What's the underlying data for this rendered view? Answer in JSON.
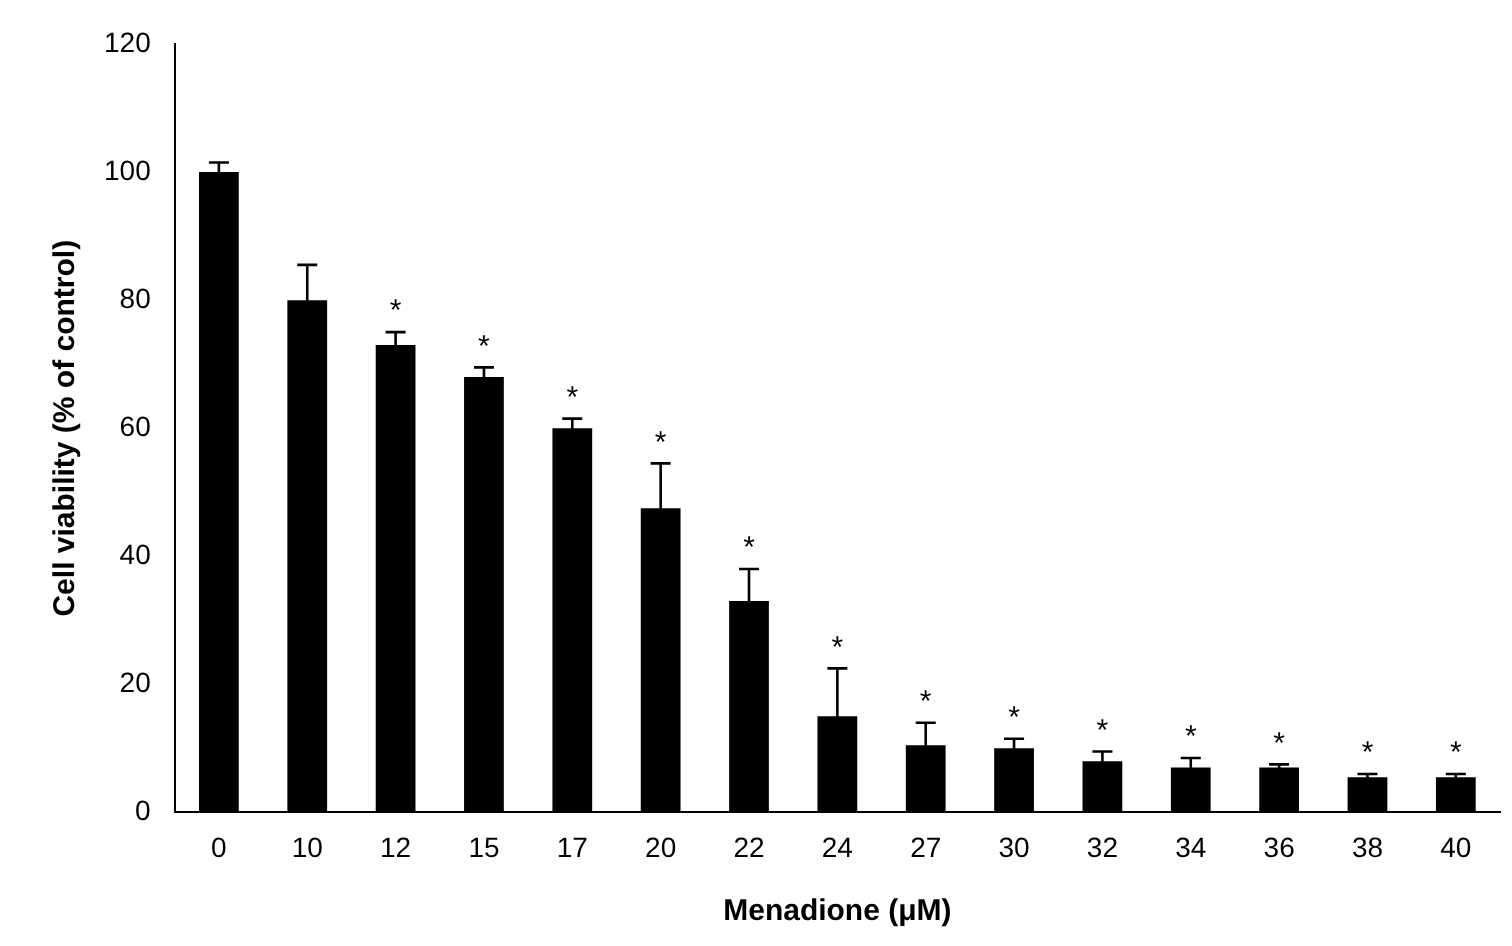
{
  "chart_data": {
    "type": "bar",
    "xlabel": "Menadione (μM)",
    "ylabel": "Cell viability (% of control)",
    "categories": [
      "0",
      "10",
      "12",
      "15",
      "17",
      "20",
      "22",
      "24",
      "27",
      "30",
      "32",
      "34",
      "36",
      "38",
      "40"
    ],
    "values": [
      100,
      80,
      73,
      68,
      60,
      47.5,
      33,
      15,
      10.5,
      10,
      8,
      7,
      7,
      5.5,
      5.5
    ],
    "errors": [
      1.5,
      5.5,
      2,
      1.5,
      1.5,
      7,
      5,
      7.5,
      3.5,
      1.5,
      1.5,
      1.5,
      0.5,
      0.5,
      0.5
    ],
    "color": "#000000",
    "ylim": [
      0,
      120
    ],
    "yticks": [
      0,
      20,
      40,
      60,
      80,
      100,
      120
    ],
    "grid": false,
    "legend": false,
    "annotations": [
      "*",
      "*",
      "*",
      "*",
      "*",
      "*",
      "*",
      "*",
      "*",
      "*",
      "*",
      "*",
      "*"
    ]
  }
}
